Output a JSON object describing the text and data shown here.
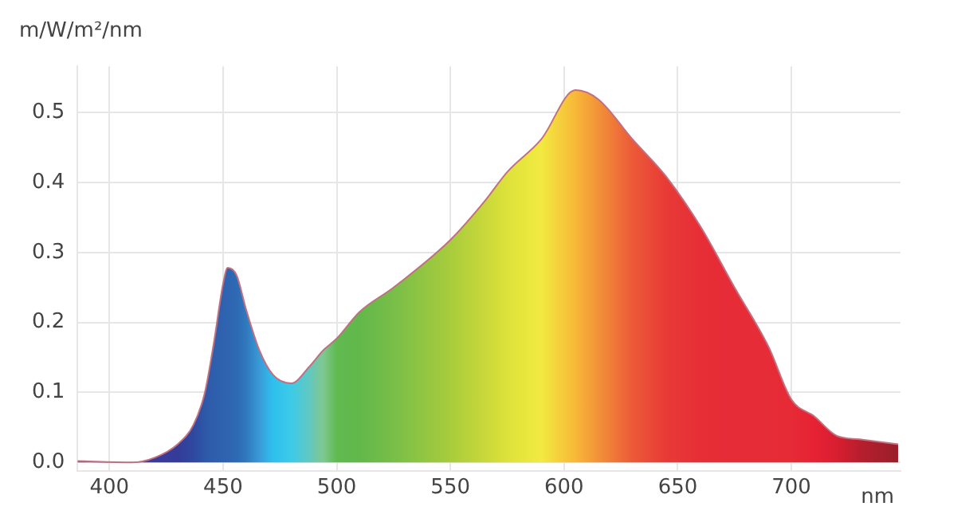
{
  "chart_data": {
    "type": "area",
    "ylabel": "m/W/m²/nm",
    "xlabel": "nm",
    "xlim": [
      386,
      748
    ],
    "xticks": [
      400,
      450,
      500,
      550,
      600,
      650,
      700
    ],
    "ylim": [
      -0.012,
      0.566
    ],
    "yticks": [
      {
        "value": 0,
        "label": "0.0"
      },
      0.1,
      0.2,
      0.3,
      0.4,
      0.5
    ],
    "grid": true,
    "marker": "none",
    "series": [
      {
        "color": "#c07080",
        "x": [
          386,
          410,
          420,
          430,
          437,
          442,
          446,
          450,
          452,
          456,
          460,
          466,
          472,
          480,
          488,
          494,
          500,
          510,
          525,
          550,
          565,
          575,
          590,
          605,
          615,
          630,
          645,
          660,
          675,
          690,
          700,
          710,
          720,
          730,
          747
        ],
        "values": [
          0.002,
          0.0,
          0.007,
          0.026,
          0.054,
          0.1,
          0.172,
          0.255,
          0.278,
          0.267,
          0.22,
          0.16,
          0.125,
          0.113,
          0.137,
          0.16,
          0.177,
          0.215,
          0.25,
          0.318,
          0.373,
          0.415,
          0.462,
          0.532,
          0.519,
          0.462,
          0.408,
          0.337,
          0.25,
          0.165,
          0.09,
          0.066,
          0.038,
          0.033,
          0.026
        ],
        "colors": [
          "#7a3a8a",
          "#5a3a9a",
          "#3a3a9a",
          "#343c98",
          "#2f48a0",
          "#2d58a8",
          "#2d5fac",
          "#2e62ae",
          "#2e64b0",
          "#2e6ab4",
          "#2f78bc",
          "#3a9ad8",
          "#2ec0ee",
          "#3ccbe8",
          "#62c8c0",
          "#80c890",
          "#60ba50",
          "#62b84a",
          "#78be48",
          "#a8cc3c",
          "#c8d83a",
          "#dde23a",
          "#f2ea40",
          "#f8b838",
          "#f29238",
          "#ec5a38",
          "#e83a36",
          "#e62e36",
          "#e62c36",
          "#e62c36",
          "#e62a36",
          "#e62234",
          "#d81e30",
          "#b81e2e",
          "#9a1e2a"
        ]
      }
    ]
  }
}
